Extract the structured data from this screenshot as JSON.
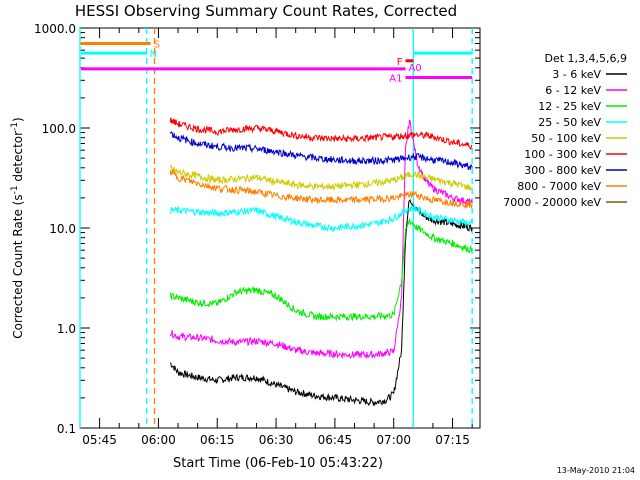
{
  "chart_data": {
    "type": "line",
    "title": "HESSI Observing Summary Count Rates, Corrected",
    "xlabel": "Start Time (06-Feb-10 05:43:22)",
    "ylabel": "Corrected Count Rate (s⁻¹ detector⁻¹)",
    "ylabel_parts": {
      "main": "Corrected Count Rate (s",
      "sup1": "-1",
      "mid": " detector",
      "sup2": "-1",
      "end": ")"
    },
    "yscale": "log",
    "ylim": [
      0.1,
      1000
    ],
    "xlim": [
      "05:40",
      "07:22"
    ],
    "x_ticks": [
      "05:45",
      "06:00",
      "06:15",
      "06:30",
      "06:45",
      "07:00",
      "07:15"
    ],
    "y_ticks": [
      "0.1",
      "1.0",
      "10.0",
      "100.0",
      "1000.0"
    ],
    "legend_title": "Det 1,3,4,5,6,9",
    "legend_placement": "right",
    "timestamp": "13-May-2010 21:04",
    "series": [
      {
        "name": "3 - 6 keV",
        "color": "#000000",
        "x": [
          "06:03",
          "06:05",
          "06:10",
          "06:15",
          "06:20",
          "06:25",
          "06:30",
          "06:35",
          "06:40",
          "06:45",
          "06:50",
          "06:55",
          "06:58",
          "07:00",
          "07:02",
          "07:03",
          "07:04",
          "07:06",
          "07:08",
          "07:10",
          "07:15",
          "07:20"
        ],
        "y": [
          0.45,
          0.36,
          0.32,
          0.3,
          0.32,
          0.32,
          0.27,
          0.23,
          0.21,
          0.2,
          0.19,
          0.18,
          0.19,
          0.22,
          0.6,
          8,
          20,
          15,
          13,
          12,
          11,
          10
        ]
      },
      {
        "name": "6 - 12 keV",
        "color": "#ff00ff",
        "x": [
          "06:03",
          "06:05",
          "06:10",
          "06:15",
          "06:20",
          "06:25",
          "06:30",
          "06:35",
          "06:40",
          "06:45",
          "06:50",
          "06:55",
          "07:00",
          "07:02",
          "07:03",
          "07:04",
          "07:06",
          "07:08",
          "07:10",
          "07:15",
          "07:20"
        ],
        "y": [
          0.9,
          0.82,
          0.8,
          0.75,
          0.72,
          0.74,
          0.7,
          0.6,
          0.56,
          0.55,
          0.54,
          0.54,
          0.58,
          2.0,
          60,
          120,
          45,
          30,
          25,
          20,
          18
        ]
      },
      {
        "name": "12 - 25 keV",
        "color": "#00ee00",
        "x": [
          "06:03",
          "06:05",
          "06:10",
          "06:15",
          "06:20",
          "06:25",
          "06:30",
          "06:35",
          "06:40",
          "06:45",
          "06:50",
          "06:55",
          "07:00",
          "07:02",
          "07:03",
          "07:04",
          "07:06",
          "07:08",
          "07:10",
          "07:15",
          "07:20"
        ],
        "y": [
          2.1,
          2.0,
          1.8,
          1.75,
          2.3,
          2.4,
          2.1,
          1.5,
          1.3,
          1.3,
          1.3,
          1.3,
          1.35,
          3,
          9,
          12,
          10,
          9,
          8,
          7,
          6
        ]
      },
      {
        "name": "25 - 50 keV",
        "color": "#00ffff",
        "x": [
          "06:03",
          "06:05",
          "06:10",
          "06:15",
          "06:20",
          "06:25",
          "06:30",
          "06:35",
          "06:40",
          "06:45",
          "06:50",
          "06:55",
          "07:00",
          "07:03",
          "07:05",
          "07:08",
          "07:10",
          "07:15",
          "07:20"
        ],
        "y": [
          15,
          15,
          14.5,
          14,
          14.5,
          15,
          13,
          11.5,
          10.5,
          10,
          10.5,
          11,
          12.5,
          15,
          16,
          14,
          13,
          12,
          11
        ]
      },
      {
        "name": "50 - 100 keV",
        "color": "#cccc00",
        "x": [
          "06:03",
          "06:05",
          "06:10",
          "06:15",
          "06:20",
          "06:25",
          "06:30",
          "06:35",
          "06:40",
          "06:45",
          "06:50",
          "06:55",
          "07:00",
          "07:03",
          "07:05",
          "07:08",
          "07:10",
          "07:15",
          "07:20"
        ],
        "y": [
          40,
          36,
          33,
          30,
          31,
          32,
          29,
          27,
          26,
          26,
          27,
          28,
          30,
          33,
          35,
          32,
          31,
          28,
          25
        ]
      },
      {
        "name": "100 - 300 keV",
        "color": "#ff0000",
        "x": [
          "06:03",
          "06:05",
          "06:10",
          "06:15",
          "06:20",
          "06:25",
          "06:30",
          "06:35",
          "06:40",
          "06:45",
          "06:50",
          "06:55",
          "07:00",
          "07:03",
          "07:05",
          "07:08",
          "07:10",
          "07:15",
          "07:20"
        ],
        "y": [
          120,
          110,
          98,
          92,
          97,
          100,
          93,
          84,
          80,
          78,
          78,
          80,
          82,
          84,
          86,
          84,
          82,
          72,
          66
        ]
      },
      {
        "name": "300 - 800 keV",
        "color": "#0000cc",
        "x": [
          "06:03",
          "06:05",
          "06:10",
          "06:15",
          "06:20",
          "06:25",
          "06:30",
          "06:35",
          "06:40",
          "06:45",
          "06:50",
          "06:55",
          "07:00",
          "07:03",
          "07:05",
          "07:08",
          "07:10",
          "07:15",
          "07:20"
        ],
        "y": [
          90,
          80,
          70,
          65,
          63,
          62,
          58,
          53,
          50,
          48,
          47,
          47,
          48,
          50,
          52,
          50,
          48,
          45,
          40
        ]
      },
      {
        "name": "800 - 7000 keV",
        "color": "#ff7f00",
        "x": [
          "06:03",
          "06:05",
          "06:10",
          "06:15",
          "06:20",
          "06:25",
          "06:30",
          "06:35",
          "06:40",
          "06:45",
          "06:50",
          "06:55",
          "07:00",
          "07:03",
          "07:05",
          "07:08",
          "07:10",
          "07:15",
          "07:20"
        ],
        "y": [
          37,
          32,
          28,
          25,
          24,
          23,
          21,
          20,
          19,
          19,
          19,
          19.5,
          20,
          21,
          22,
          20,
          19,
          18,
          17
        ]
      },
      {
        "name": "7000 - 20000 keV",
        "color": "#7f5f00",
        "x": [],
        "y": []
      }
    ],
    "vertical_markers": [
      {
        "time": "05:40",
        "color": "#00ffff",
        "style": "solid"
      },
      {
        "time": "05:57",
        "color": "#00ffff",
        "style": "dashed"
      },
      {
        "time": "05:59",
        "color": "#ff7f00",
        "style": "dashed"
      },
      {
        "time": "07:05",
        "color": "#00ffff",
        "style": "solid"
      },
      {
        "time": "07:20",
        "color": "#00ffff",
        "style": "dashed"
      }
    ],
    "flag_bars": [
      {
        "label": "S",
        "color": "#ff7f00",
        "start": "05:40",
        "end": "05:58",
        "level": 700
      },
      {
        "label": "N",
        "color": "#00ffff",
        "start": "05:40",
        "end": "05:57",
        "level": 560
      },
      {
        "label": "",
        "color": "#00ffff",
        "start": "07:05",
        "end": "07:20",
        "level": 560
      },
      {
        "label": "F",
        "color": "#ff0000",
        "start": "07:03",
        "end": "07:05",
        "level": 470
      },
      {
        "label": "A0",
        "color": "#ff00ff",
        "start": "05:40",
        "end": "07:03",
        "level": 390
      },
      {
        "label": "A1",
        "color": "#ff00ff",
        "start": "07:03",
        "end": "07:20",
        "level": 320
      }
    ]
  }
}
